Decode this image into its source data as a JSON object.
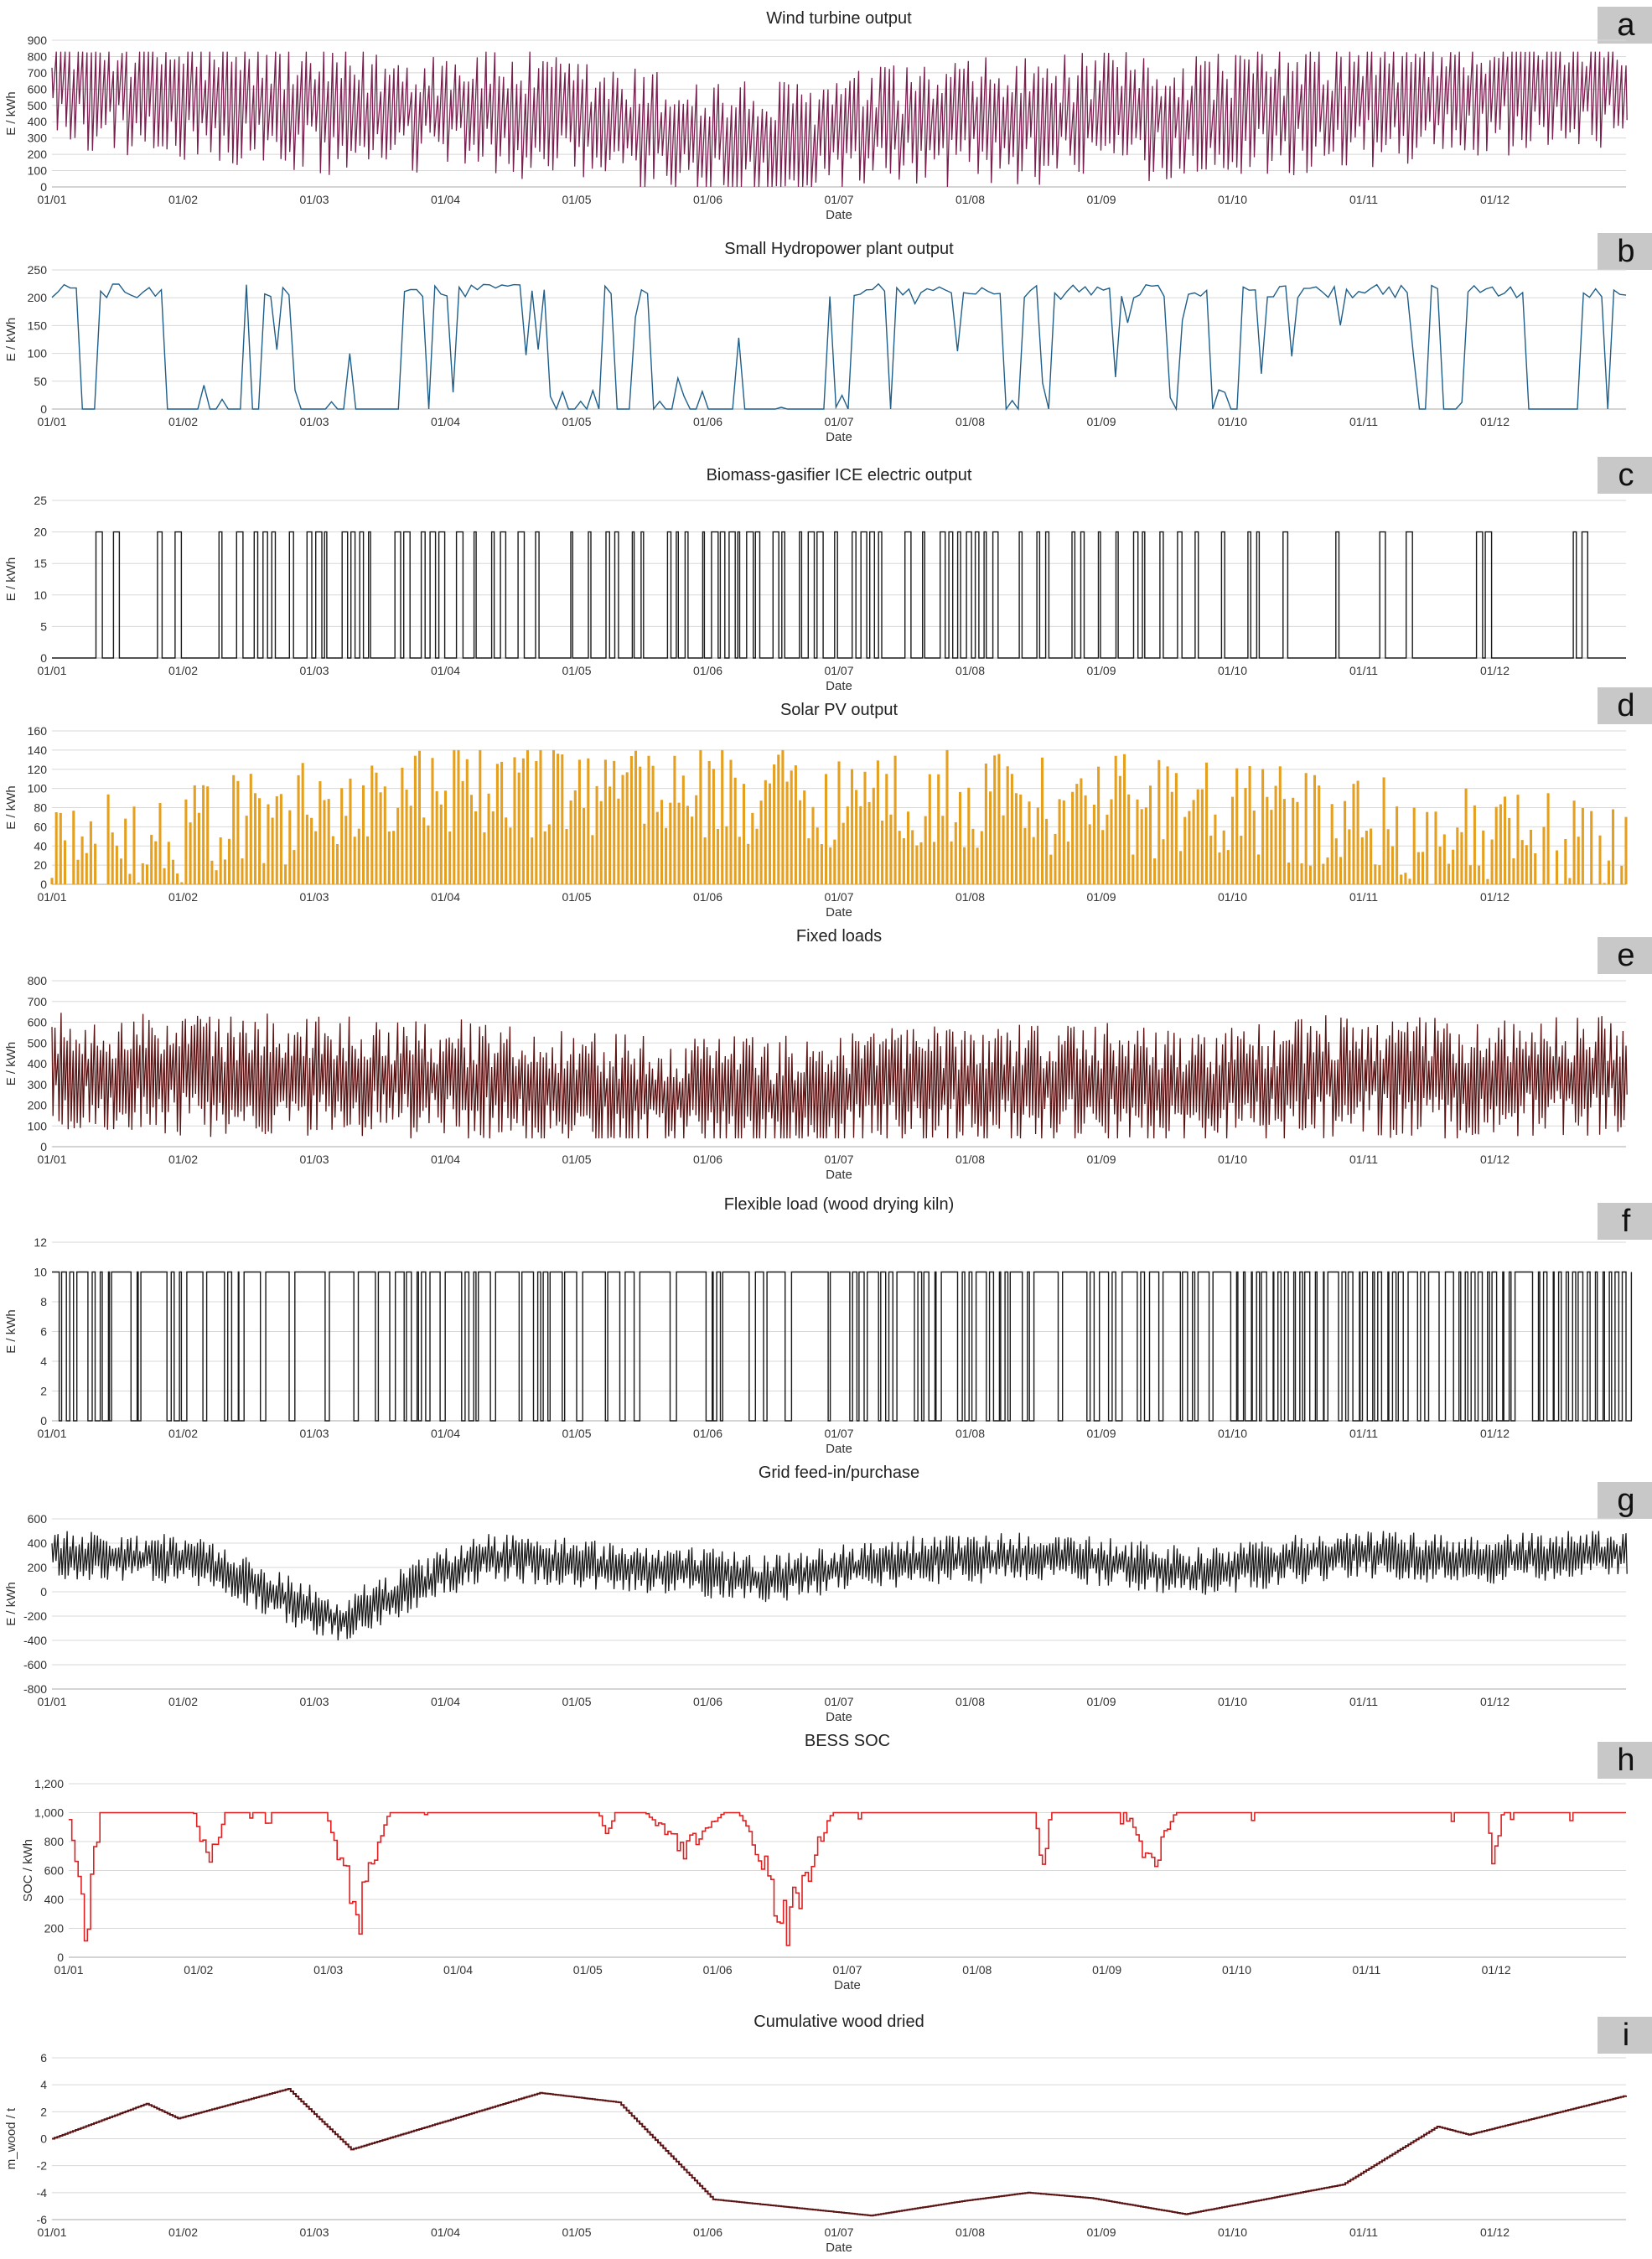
{
  "chart_data": [
    {
      "id": "a",
      "type": "line",
      "title": "Wind turbine output",
      "xlabel": "Date",
      "ylabel": "E / kWh",
      "ylim": [
        0,
        900
      ],
      "yticks": [
        0,
        100,
        200,
        300,
        400,
        500,
        600,
        700,
        800,
        900
      ],
      "color": "#7a2050",
      "style": "spiky",
      "grid": true,
      "xticks": [
        "01/01",
        "01/02",
        "01/03",
        "01/04",
        "01/05",
        "01/06",
        "01/07",
        "01/08",
        "01/09",
        "01/10",
        "01/11",
        "01/12"
      ],
      "profile": [
        620,
        520,
        430,
        460,
        330,
        230,
        350,
        400,
        420,
        470,
        560,
        640
      ],
      "amplitude": 350,
      "min": 0,
      "max": 830,
      "n": 360
    },
    {
      "id": "b",
      "type": "line",
      "title": "Small Hydropower plant output",
      "xlabel": "Date",
      "ylabel": "E / kWh",
      "ylim": [
        0,
        250
      ],
      "yticks": [
        0,
        50,
        100,
        150,
        200,
        250
      ],
      "color": "#1f5f8a",
      "style": "plateau",
      "grid": true,
      "xticks": [
        "01/01",
        "01/02",
        "01/03",
        "01/04",
        "01/05",
        "01/06",
        "01/07",
        "01/08",
        "01/09",
        "01/10",
        "01/11",
        "01/12"
      ],
      "profile": [
        0.75,
        0.6,
        0.1,
        0.7,
        0.25,
        0.0,
        0.6,
        0.7,
        0.6,
        0.85,
        0.7,
        0.75
      ],
      "high": 225,
      "low": 0,
      "min": 0,
      "max": 235,
      "n": 260
    },
    {
      "id": "c",
      "type": "line",
      "title": "Biomass-gasifier ICE electric output",
      "xlabel": "Date",
      "ylabel": "E / kWh",
      "ylim": [
        0,
        25
      ],
      "yticks": [
        0,
        5,
        10,
        15,
        20,
        25
      ],
      "color": "#1a1a1a",
      "style": "binary",
      "grid": true,
      "xticks": [
        "01/01",
        "01/02",
        "01/03",
        "01/04",
        "01/05",
        "01/06",
        "01/07",
        "01/08",
        "01/09",
        "01/10",
        "01/11",
        "01/12"
      ],
      "profile": [
        0.3,
        0.35,
        0.6,
        0.25,
        0.6,
        0.8,
        0.3,
        0.5,
        0.7,
        0.1,
        0.6,
        0.2
      ],
      "high": 20,
      "low": 0,
      "min": 0,
      "max": 20,
      "n": 180
    },
    {
      "id": "d",
      "type": "bar",
      "title": "Solar PV output",
      "xlabel": "Date",
      "ylabel": "E / kWh",
      "ylim": [
        0,
        160
      ],
      "yticks": [
        0,
        20,
        40,
        60,
        80,
        100,
        120,
        140,
        160
      ],
      "color": "#e6a020",
      "style": "daily",
      "grid": true,
      "xticks": [
        "01/01",
        "01/02",
        "01/03",
        "01/04",
        "01/05",
        "01/06",
        "01/07",
        "01/08",
        "01/09",
        "01/10",
        "01/11",
        "01/12"
      ],
      "profile": [
        35,
        55,
        85,
        100,
        105,
        95,
        90,
        85,
        80,
        65,
        45,
        35
      ],
      "amplitude": 55,
      "min": 0,
      "max": 140,
      "n": 365
    },
    {
      "id": "e",
      "type": "line",
      "title": "Fixed loads",
      "xlabel": "Date",
      "ylabel": "E / kWh",
      "ylim": [
        0,
        800
      ],
      "yticks": [
        0,
        100,
        200,
        300,
        400,
        500,
        600,
        700,
        800
      ],
      "color": "#5a1212",
      "style": "spiky",
      "grid": true,
      "xticks": [
        "01/01",
        "01/02",
        "01/03",
        "01/04",
        "01/05",
        "01/06",
        "01/07",
        "01/08",
        "01/09",
        "01/10",
        "01/11",
        "01/12"
      ],
      "profile": [
        350,
        330,
        330,
        300,
        240,
        220,
        280,
        300,
        260,
        330,
        300,
        340
      ],
      "amplitude": 260,
      "min": 40,
      "max": 750,
      "n": 520
    },
    {
      "id": "f",
      "type": "line",
      "title": "Flexible load (wood drying kiln)",
      "xlabel": "Date",
      "ylabel": "E / kWh",
      "ylim": [
        0,
        12
      ],
      "yticks": [
        0,
        2,
        4,
        6,
        8,
        10,
        12
      ],
      "color": "#1a1a1a",
      "style": "binary_inv",
      "grid": true,
      "xticks": [
        "01/01",
        "01/02",
        "01/03",
        "01/04",
        "01/05",
        "01/06",
        "01/07",
        "01/08",
        "01/09",
        "01/10",
        "01/11",
        "01/12"
      ],
      "profile": [
        0.7,
        0.5,
        0.5,
        0.6,
        0.4,
        0.3,
        0.7,
        0.5,
        0.3,
        0.9,
        0.8,
        0.9
      ],
      "high": 10,
      "low": 0,
      "min": 0,
      "max": 10,
      "n": 220
    },
    {
      "id": "g",
      "type": "line",
      "title": "Grid feed-in/purchase",
      "xlabel": "Date",
      "ylabel": "E / kWh",
      "ylim": [
        -800,
        600
      ],
      "yticks": [
        -800,
        -600,
        -400,
        -200,
        0,
        200,
        400,
        600
      ],
      "color": "#1a1a1a",
      "style": "spiky",
      "grid": true,
      "xticks": [
        "01/01",
        "01/02",
        "01/03",
        "01/04",
        "01/05",
        "01/06",
        "01/07",
        "01/08",
        "01/09",
        "01/10",
        "01/11",
        "01/12"
      ],
      "profile": [
        300,
        250,
        -250,
        280,
        200,
        100,
        250,
        280,
        150,
        300,
        250,
        320
      ],
      "amplitude": 180,
      "min": -620,
      "max": 500,
      "n": 520
    },
    {
      "id": "h",
      "type": "line",
      "title": "BESS SOC",
      "xlabel": "Date",
      "ylabel": "SOC / kWh",
      "ylim": [
        0,
        1200
      ],
      "yticks": [
        "0",
        "200",
        "400",
        "600",
        "800",
        "1,000",
        "1,200"
      ],
      "color": "#e02020",
      "style": "soc",
      "grid": true,
      "xticks": [
        "01/01",
        "01/02",
        "01/03",
        "01/04",
        "01/05",
        "01/06",
        "01/07",
        "01/08",
        "01/09",
        "01/10",
        "01/11",
        "01/12"
      ],
      "dips": [
        {
          "start": 0.0,
          "end": 0.02,
          "depth": 950
        },
        {
          "start": 0.08,
          "end": 0.1,
          "depth": 450
        },
        {
          "start": 0.165,
          "end": 0.205,
          "depth": 900
        },
        {
          "start": 0.34,
          "end": 0.35,
          "depth": 200
        },
        {
          "start": 0.37,
          "end": 0.42,
          "depth": 300
        },
        {
          "start": 0.43,
          "end": 0.49,
          "depth": 880
        },
        {
          "start": 0.62,
          "end": 0.63,
          "depth": 500
        },
        {
          "start": 0.68,
          "end": 0.71,
          "depth": 450
        },
        {
          "start": 0.91,
          "end": 0.92,
          "depth": 450
        }
      ],
      "min": 0,
      "max": 1000,
      "n": 500
    },
    {
      "id": "i",
      "type": "line",
      "title": "Cumulative wood dried",
      "xlabel": "Date",
      "ylabel": "m_wood / t",
      "ylim": [
        -6,
        6
      ],
      "yticks": [
        -6,
        -4,
        -2,
        0,
        2,
        4,
        6
      ],
      "color": "#5a1212",
      "style": "cumulative",
      "grid": true,
      "xticks": [
        "01/01",
        "01/02",
        "01/03",
        "01/04",
        "01/05",
        "01/06",
        "01/07",
        "01/08",
        "01/09",
        "01/10",
        "01/11",
        "01/12"
      ],
      "points": [
        [
          0,
          0
        ],
        [
          0.06,
          2.6
        ],
        [
          0.08,
          1.5
        ],
        [
          0.15,
          3.7
        ],
        [
          0.19,
          -0.8
        ],
        [
          0.31,
          3.4
        ],
        [
          0.36,
          2.7
        ],
        [
          0.42,
          -4.5
        ],
        [
          0.52,
          -5.7
        ],
        [
          0.58,
          -4.6
        ],
        [
          0.62,
          -4.0
        ],
        [
          0.66,
          -4.4
        ],
        [
          0.72,
          -5.6
        ],
        [
          0.82,
          -3.4
        ],
        [
          0.88,
          0.9
        ],
        [
          0.9,
          0.3
        ],
        [
          1.0,
          3.2
        ]
      ]
    }
  ],
  "labels": [
    "a",
    "b",
    "c",
    "d",
    "e",
    "f",
    "g",
    "h",
    "i"
  ]
}
